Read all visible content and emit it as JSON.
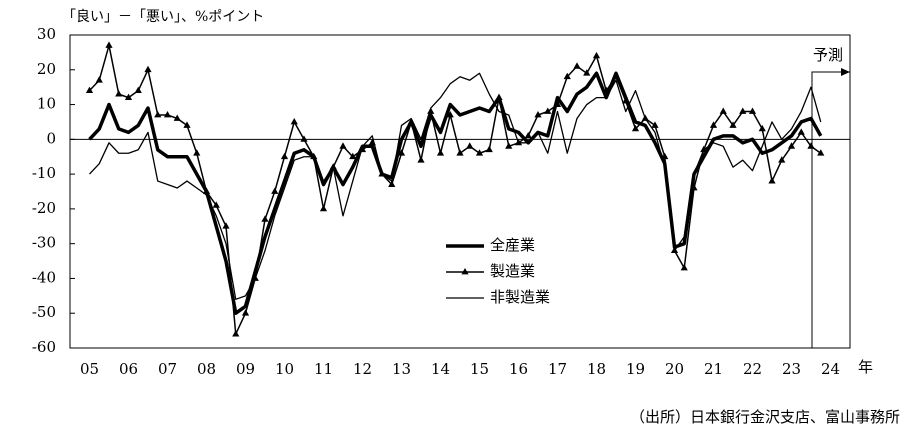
{
  "chart_data": {
    "type": "line",
    "ylabel": "「良い」－「悪い」、%ポイント",
    "xlabel": "年",
    "annotation": "予測",
    "source": "（出所）日本銀行金沢支店、富山事務所",
    "xlim": [
      5,
      25
    ],
    "ylim": [
      -60,
      30
    ],
    "yticks": [
      -60,
      -50,
      -40,
      -30,
      -20,
      -10,
      0,
      10,
      20,
      30
    ],
    "xticks": [
      {
        "value": 5.5,
        "label": "05"
      },
      {
        "value": 6.5,
        "label": "06"
      },
      {
        "value": 7.5,
        "label": "07"
      },
      {
        "value": 8.5,
        "label": "08"
      },
      {
        "value": 9.5,
        "label": "09"
      },
      {
        "value": 10.5,
        "label": "10"
      },
      {
        "value": 11.5,
        "label": "11"
      },
      {
        "value": 12.5,
        "label": "12"
      },
      {
        "value": 13.5,
        "label": "13"
      },
      {
        "value": 14.5,
        "label": "14"
      },
      {
        "value": 15.5,
        "label": "15"
      },
      {
        "value": 16.5,
        "label": "16"
      },
      {
        "value": 17.5,
        "label": "17"
      },
      {
        "value": 18.5,
        "label": "18"
      },
      {
        "value": 19.5,
        "label": "19"
      },
      {
        "value": 20.5,
        "label": "20"
      },
      {
        "value": 21.5,
        "label": "21"
      },
      {
        "value": 22.5,
        "label": "22"
      },
      {
        "value": 23.5,
        "label": "23"
      },
      {
        "value": 24.5,
        "label": "24"
      }
    ],
    "x": [
      5.5,
      5.75,
      6,
      6.25,
      6.5,
      6.75,
      7,
      7.25,
      7.5,
      7.75,
      8,
      8.25,
      8.5,
      8.75,
      9,
      9.25,
      9.5,
      9.75,
      10,
      10.25,
      10.5,
      10.75,
      11,
      11.25,
      11.5,
      11.75,
      12,
      12.25,
      12.5,
      12.75,
      13,
      13.25,
      13.5,
      13.75,
      14,
      14.25,
      14.5,
      14.75,
      15,
      15.25,
      15.5,
      15.75,
      16,
      16.25,
      16.5,
      16.75,
      17,
      17.25,
      17.5,
      17.75,
      18,
      18.25,
      18.5,
      18.75,
      19,
      19.25,
      19.5,
      19.75,
      20,
      20.25,
      20.5,
      20.75,
      21,
      21.25,
      21.5,
      21.75,
      22,
      22.25,
      22.5,
      22.75,
      23,
      23.25,
      23.5,
      23.75,
      24,
      24.25
    ],
    "series": [
      {
        "name": "全産業",
        "color": "#000000",
        "width": 3.5,
        "marker": null,
        "values": [
          0,
          3,
          10,
          3,
          2,
          4,
          9,
          -3,
          -5,
          -5,
          -5,
          -10,
          -15,
          -25,
          -35,
          -50,
          -48,
          -38,
          -28,
          -20,
          -12,
          -4,
          -3,
          -5,
          -13,
          -8,
          -13,
          -8,
          -2,
          -2,
          -10,
          -11,
          0,
          5,
          -2,
          7,
          2,
          10,
          7,
          8,
          9,
          8,
          12,
          3,
          2,
          -1,
          2,
          1,
          12,
          8,
          13,
          15,
          19,
          12,
          19,
          12,
          5,
          4,
          -1,
          -7,
          -31,
          -30,
          -10,
          -5,
          0,
          1,
          1,
          -1,
          0,
          -4,
          -3,
          -1,
          1,
          5,
          6,
          1
        ]
      },
      {
        "name": "製造業",
        "color": "#000000",
        "width": 1.5,
        "marker": "triangle",
        "values": [
          14,
          17,
          27,
          13,
          12,
          14,
          20,
          7,
          7,
          6,
          4,
          -4,
          -15,
          -19,
          -25,
          -56,
          -50,
          -40,
          -23,
          -15,
          -5,
          5,
          0,
          -5,
          -20,
          -8,
          -2,
          -5,
          -3,
          -1,
          -10,
          -13,
          -4,
          5,
          -6,
          8,
          -4,
          7,
          -4,
          -2,
          -4,
          -3,
          12,
          -2,
          -1,
          1,
          7,
          8,
          10,
          18,
          21,
          19,
          24,
          14,
          18,
          11,
          3,
          6,
          4,
          -5,
          -32,
          -37,
          -14,
          -3,
          4,
          8,
          4,
          8,
          8,
          3,
          -12,
          -6,
          -2,
          2,
          -2,
          -4
        ]
      },
      {
        "name": "非製造業",
        "color": "#000000",
        "width": 1.3,
        "marker": null,
        "values": [
          -10,
          -7,
          -1,
          -4,
          -4,
          -3,
          2,
          -12,
          -13,
          -14,
          -12,
          -14,
          -16,
          -22,
          -30,
          -46,
          -45,
          -40,
          -32,
          -22,
          -14,
          -6,
          -5,
          -5,
          -12,
          -8,
          -22,
          -12,
          -2,
          1,
          -10,
          -12,
          4,
          6,
          0,
          9,
          12,
          16,
          18,
          17,
          19,
          13,
          8,
          7,
          -1,
          -1,
          2,
          -4,
          8,
          -4,
          6,
          10,
          12,
          12,
          17,
          8,
          14,
          6,
          2,
          -8,
          -32,
          -28,
          -10,
          -3,
          -1,
          -2,
          -8,
          -6,
          -9,
          -2,
          5,
          0,
          3,
          8,
          15,
          5
        ]
      }
    ]
  }
}
